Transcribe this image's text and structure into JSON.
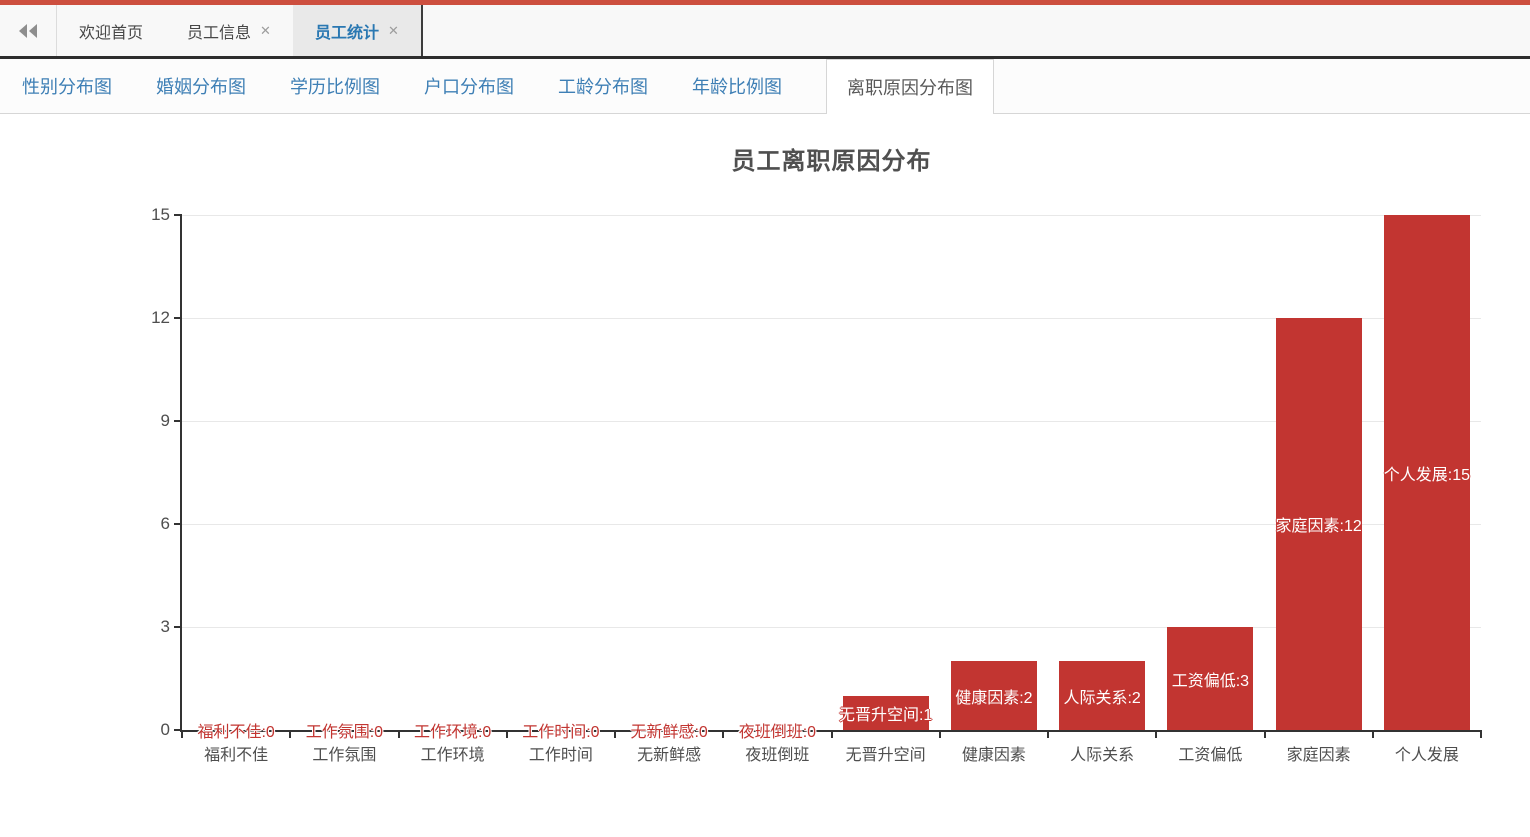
{
  "colors": {
    "top_accent": "#cd4f3f",
    "active_window_tab_text": "#2a78b2",
    "chart_nav_link": "#3e7fb5",
    "bar": "#c23531",
    "axis": "#333333",
    "gridline": "#e8e8e8"
  },
  "window_tabs": {
    "collapse_icon": "double-left-arrows",
    "close_icon": "✕",
    "tabs": [
      {
        "label": "欢迎首页",
        "closable": false,
        "active": false
      },
      {
        "label": "员工信息",
        "closable": true,
        "active": false
      },
      {
        "label": "员工统计",
        "closable": true,
        "active": true
      }
    ]
  },
  "chart_nav": {
    "tabs": [
      {
        "label": "性别分布图",
        "active": false
      },
      {
        "label": "婚姻分布图",
        "active": false
      },
      {
        "label": "学历比例图",
        "active": false
      },
      {
        "label": "户口分布图",
        "active": false
      },
      {
        "label": "工龄分布图",
        "active": false
      },
      {
        "label": "年龄比例图",
        "active": false
      },
      {
        "label": "离职原因分布图",
        "active": true
      }
    ]
  },
  "chart_data": {
    "type": "bar",
    "title": "员工离职原因分布",
    "categories": [
      "福利不佳",
      "工作氛围",
      "工作环境",
      "工作时间",
      "无新鲜感",
      "夜班倒班",
      "无晋升空间",
      "健康因素",
      "人际关系",
      "工资偏低",
      "家庭因素",
      "个人发展"
    ],
    "values": [
      0,
      0,
      0,
      0,
      0,
      0,
      1,
      2,
      2,
      3,
      12,
      15
    ],
    "bar_labels": [
      "福利不佳:0",
      "工作氛围:0",
      "工作环境:0",
      "工作时间:0",
      "无新鲜感:0",
      "夜班倒班:0",
      "无晋升空间:1",
      "健康因素:2",
      "人际关系:2",
      "工资偏低:3",
      "家庭因素:12",
      "个人发展:15"
    ],
    "xlabel": "",
    "ylabel": "",
    "ylim": [
      0,
      15
    ],
    "yticks": [
      0,
      3,
      6,
      9,
      12,
      15
    ],
    "grid": true,
    "legend_position": "none",
    "bar_color": "#c23531",
    "bar_label_format": "{category}:{value}"
  }
}
